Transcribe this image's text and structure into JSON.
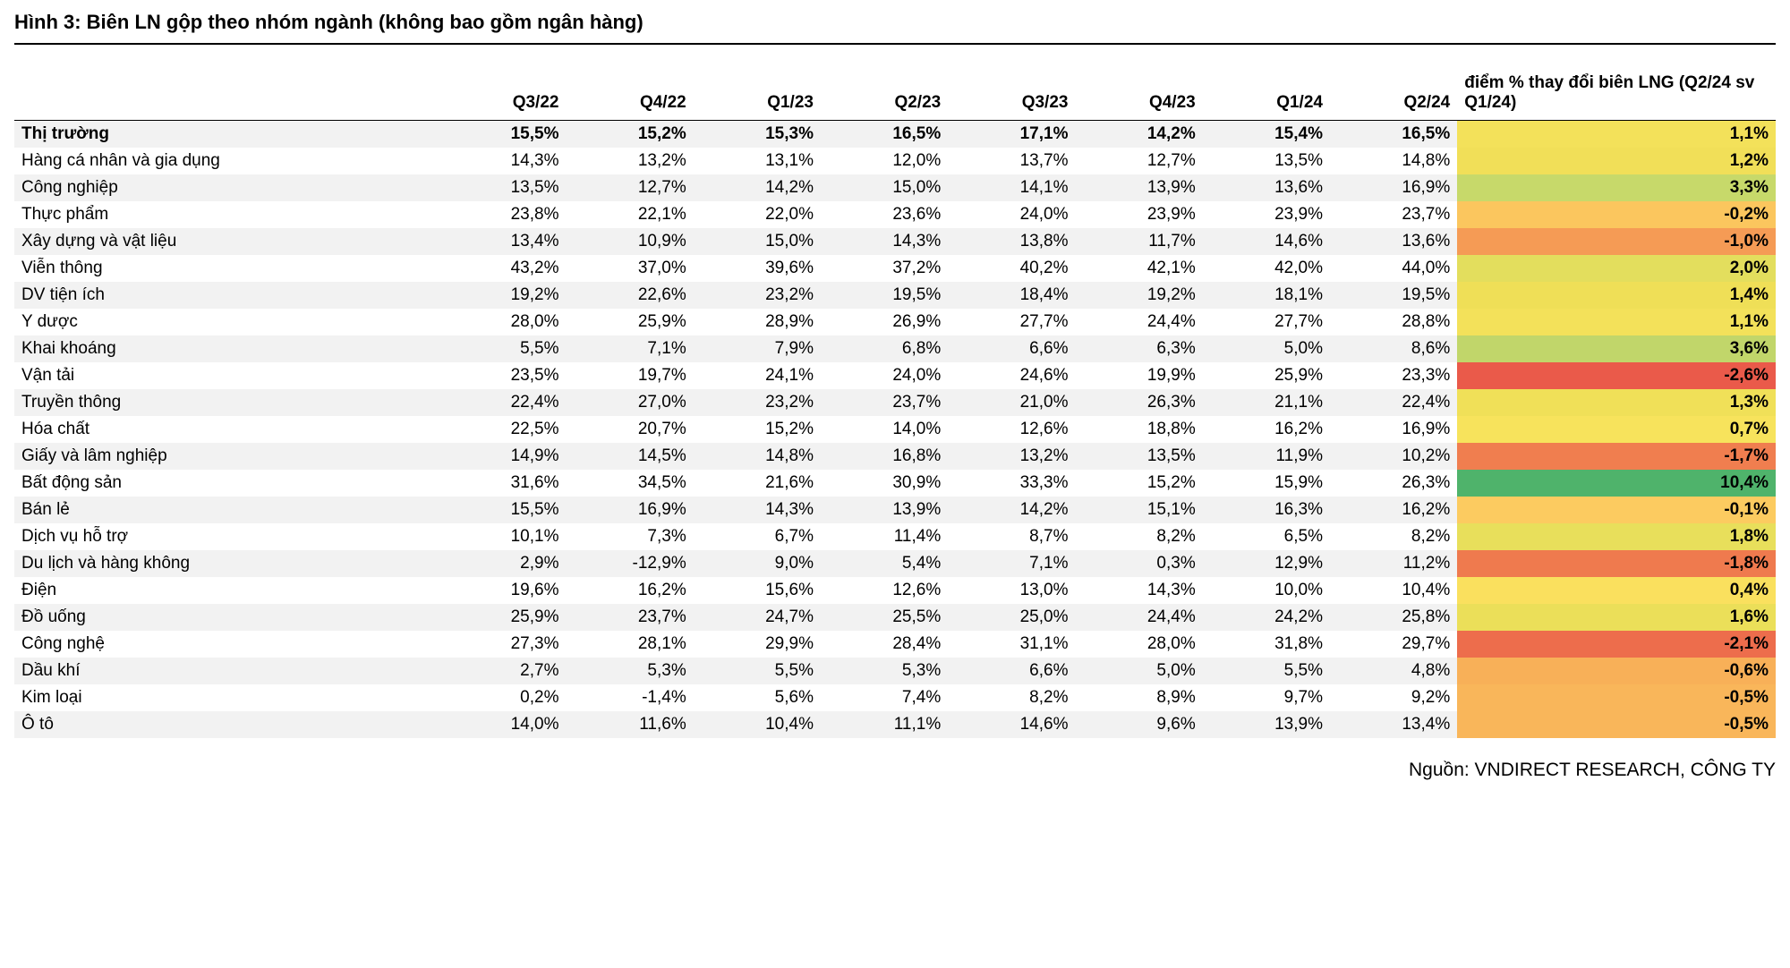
{
  "title": "Hình 3: Biên LN gộp theo nhóm ngành (không bao gồm ngân hàng)",
  "source": "Nguồn: VNDIRECT RESEARCH, CÔNG TY",
  "columns": [
    "Q3/22",
    "Q4/22",
    "Q1/23",
    "Q2/23",
    "Q3/23",
    "Q4/23",
    "Q1/24",
    "Q2/24"
  ],
  "delta_header": "điểm % thay đổi biên LNG (Q2/24 sv Q1/24)",
  "colors": {
    "stripe": "#f2f2f2",
    "border": "#000000",
    "text": "#000000"
  },
  "delta_palette_note": "heatmap green (high positive) → yellow (near zero) → red (negative)",
  "rows": [
    {
      "name": "Thị trường",
      "bold": true,
      "vals": [
        "15,5%",
        "15,2%",
        "15,3%",
        "16,5%",
        "17,1%",
        "14,2%",
        "15,4%",
        "16,5%"
      ],
      "delta": "1,1%",
      "delta_bg": "#f3e15a"
    },
    {
      "name": "Hàng cá nhân và gia dụng",
      "vals": [
        "14,3%",
        "13,2%",
        "13,1%",
        "12,0%",
        "13,7%",
        "12,7%",
        "13,5%",
        "14,8%"
      ],
      "delta": "1,2%",
      "delta_bg": "#f1df58"
    },
    {
      "name": "Công nghiệp",
      "vals": [
        "13,5%",
        "12,7%",
        "14,2%",
        "15,0%",
        "14,1%",
        "13,9%",
        "13,6%",
        "16,9%"
      ],
      "delta": "3,3%",
      "delta_bg": "#c7d96a"
    },
    {
      "name": "Thực phẩm",
      "vals": [
        "23,8%",
        "22,1%",
        "22,0%",
        "23,6%",
        "24,0%",
        "23,9%",
        "23,9%",
        "23,7%"
      ],
      "delta": "-0,2%",
      "delta_bg": "#fbc65e"
    },
    {
      "name": "Xây dựng và vật liệu",
      "vals": [
        "13,4%",
        "10,9%",
        "15,0%",
        "14,3%",
        "13,8%",
        "11,7%",
        "14,6%",
        "13,6%"
      ],
      "delta": "-1,0%",
      "delta_bg": "#f59b55"
    },
    {
      "name": "Viễn thông",
      "vals": [
        "43,2%",
        "37,0%",
        "39,6%",
        "37,2%",
        "40,2%",
        "42,1%",
        "42,0%",
        "44,0%"
      ],
      "delta": "2,0%",
      "delta_bg": "#e3de5d"
    },
    {
      "name": "DV tiện ích",
      "vals": [
        "19,2%",
        "22,6%",
        "23,2%",
        "19,5%",
        "18,4%",
        "19,2%",
        "18,1%",
        "19,5%"
      ],
      "delta": "1,4%",
      "delta_bg": "#efdf57"
    },
    {
      "name": "Y dược",
      "vals": [
        "28,0%",
        "25,9%",
        "28,9%",
        "26,9%",
        "27,7%",
        "24,4%",
        "27,7%",
        "28,8%"
      ],
      "delta": "1,1%",
      "delta_bg": "#f3e15a"
    },
    {
      "name": "Khai khoáng",
      "vals": [
        "5,5%",
        "7,1%",
        "7,9%",
        "6,8%",
        "6,6%",
        "6,3%",
        "5,0%",
        "8,6%"
      ],
      "delta": "3,6%",
      "delta_bg": "#c1d66a"
    },
    {
      "name": "Vận tải",
      "vals": [
        "23,5%",
        "19,7%",
        "24,1%",
        "24,0%",
        "24,6%",
        "19,9%",
        "25,9%",
        "23,3%"
      ],
      "delta": "-2,6%",
      "delta_bg": "#ea5a4a"
    },
    {
      "name": "Truyền thông",
      "vals": [
        "22,4%",
        "27,0%",
        "23,2%",
        "23,7%",
        "21,0%",
        "26,3%",
        "21,1%",
        "22,4%"
      ],
      "delta": "1,3%",
      "delta_bg": "#f0e058"
    },
    {
      "name": "Hóa chất",
      "vals": [
        "22,5%",
        "20,7%",
        "15,2%",
        "14,0%",
        "12,6%",
        "18,8%",
        "16,2%",
        "16,9%"
      ],
      "delta": "0,7%",
      "delta_bg": "#f7e35c"
    },
    {
      "name": "Giấy và lâm nghiệp",
      "vals": [
        "14,9%",
        "14,5%",
        "14,8%",
        "16,8%",
        "13,2%",
        "13,5%",
        "11,9%",
        "10,2%"
      ],
      "delta": "-1,7%",
      "delta_bg": "#f07e4f"
    },
    {
      "name": "Bất động sản",
      "vals": [
        "31,6%",
        "34,5%",
        "21,6%",
        "30,9%",
        "33,3%",
        "15,2%",
        "15,9%",
        "26,3%"
      ],
      "delta": "10,4%",
      "delta_bg": "#4fb36b"
    },
    {
      "name": "Bán lẻ",
      "vals": [
        "15,5%",
        "16,9%",
        "14,3%",
        "13,9%",
        "14,2%",
        "15,1%",
        "16,3%",
        "16,2%"
      ],
      "delta": "-0,1%",
      "delta_bg": "#fccb60"
    },
    {
      "name": "Dịch vụ hỗ trợ",
      "vals": [
        "10,1%",
        "7,3%",
        "6,7%",
        "11,4%",
        "8,7%",
        "8,2%",
        "6,5%",
        "8,2%"
      ],
      "delta": "1,8%",
      "delta_bg": "#e8df5b"
    },
    {
      "name": "Du lịch và hàng không",
      "vals": [
        "2,9%",
        "-12,9%",
        "9,0%",
        "5,4%",
        "7,1%",
        "0,3%",
        "12,9%",
        "11,2%"
      ],
      "delta": "-1,8%",
      "delta_bg": "#ef7a4e"
    },
    {
      "name": "Điện",
      "vals": [
        "19,6%",
        "16,2%",
        "15,6%",
        "12,6%",
        "13,0%",
        "14,3%",
        "10,0%",
        "10,4%"
      ],
      "delta": "0,4%",
      "delta_bg": "#fae05e"
    },
    {
      "name": "Đồ uống",
      "vals": [
        "25,9%",
        "23,7%",
        "24,7%",
        "25,5%",
        "25,0%",
        "24,4%",
        "24,2%",
        "25,8%"
      ],
      "delta": "1,6%",
      "delta_bg": "#ebdf59"
    },
    {
      "name": "Công nghệ",
      "vals": [
        "27,3%",
        "28,1%",
        "29,9%",
        "28,4%",
        "31,1%",
        "28,0%",
        "31,8%",
        "29,7%"
      ],
      "delta": "-2,1%",
      "delta_bg": "#ed6d4c"
    },
    {
      "name": "Dầu khí",
      "vals": [
        "2,7%",
        "5,3%",
        "5,5%",
        "5,3%",
        "6,6%",
        "5,0%",
        "5,5%",
        "4,8%"
      ],
      "delta": "-0,6%",
      "delta_bg": "#f8b058"
    },
    {
      "name": "Kim loại",
      "vals": [
        "0,2%",
        "-1,4%",
        "5,6%",
        "7,4%",
        "8,2%",
        "8,9%",
        "9,7%",
        "9,2%"
      ],
      "delta": "-0,5%",
      "delta_bg": "#f9b65a"
    },
    {
      "name": "Ô tô",
      "vals": [
        "14,0%",
        "11,6%",
        "10,4%",
        "11,1%",
        "14,6%",
        "9,6%",
        "13,9%",
        "13,4%"
      ],
      "delta": "-0,5%",
      "delta_bg": "#f9b65a"
    }
  ]
}
